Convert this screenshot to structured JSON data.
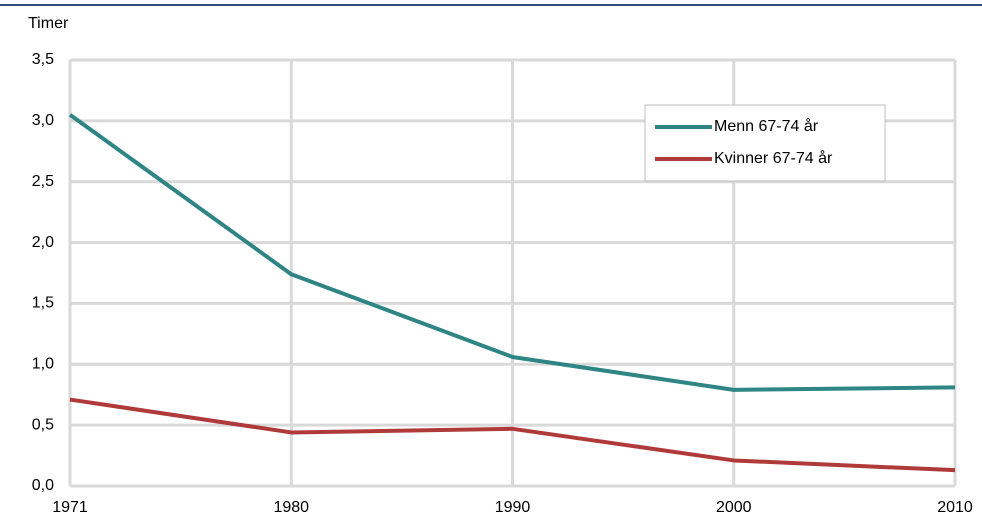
{
  "chart_data": {
    "type": "line",
    "y_axis_label": "Timer",
    "categories": [
      "1971",
      "1980",
      "1990",
      "2000",
      "2010"
    ],
    "series": [
      {
        "name": "Menn 67-74 år",
        "color": "#2e8584",
        "values": [
          3.05,
          1.74,
          1.06,
          0.79,
          0.81
        ]
      },
      {
        "name": "Kvinner 67-74 år",
        "color": "#b03a3a",
        "values": [
          0.71,
          0.44,
          0.47,
          0.21,
          0.13
        ]
      }
    ],
    "ylim": [
      0,
      3.5
    ],
    "yticks": [
      {
        "value": 0,
        "label": "0,0"
      },
      {
        "value": 0.5,
        "label": "0,5"
      },
      {
        "value": 1,
        "label": "1,0"
      },
      {
        "value": 1.5,
        "label": "1,5"
      },
      {
        "value": 2,
        "label": "2,0"
      },
      {
        "value": 2.5,
        "label": "2,5"
      },
      {
        "value": 3,
        "label": "3,0"
      },
      {
        "value": 3.5,
        "label": "3,5"
      }
    ],
    "grid": true
  }
}
